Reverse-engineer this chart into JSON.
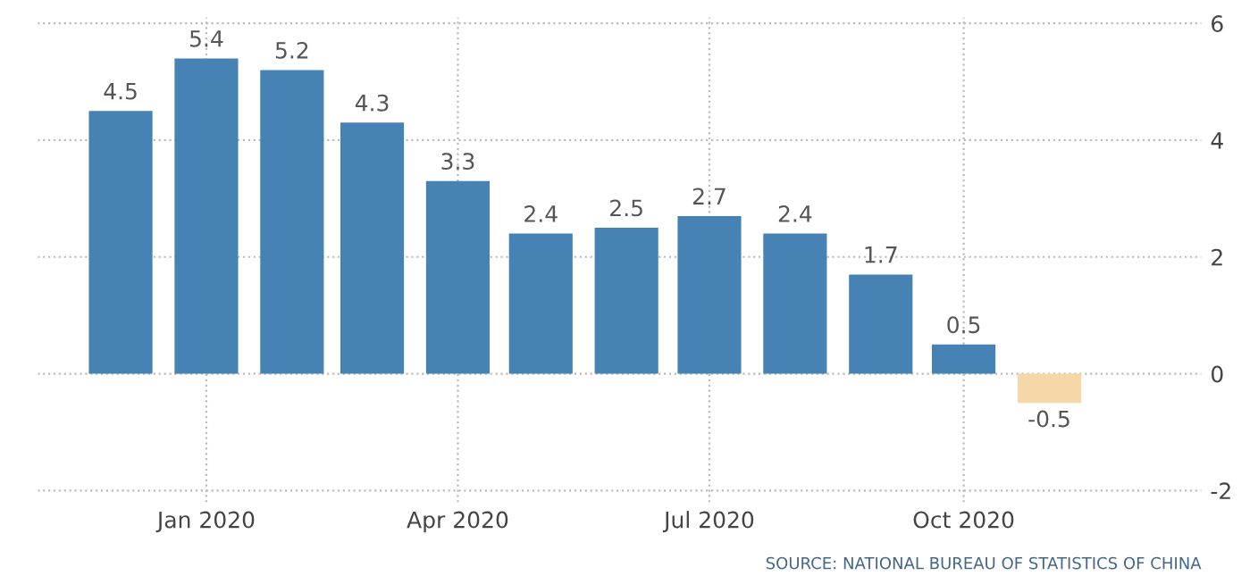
{
  "chart_data": {
    "type": "bar",
    "x": [
      "2019-12",
      "2020-01",
      "2020-02",
      "2020-03",
      "2020-04",
      "2020-05",
      "2020-06",
      "2020-07",
      "2020-08",
      "2020-09",
      "2020-10",
      "2020-11"
    ],
    "values": [
      4.5,
      5.4,
      5.2,
      4.3,
      3.3,
      2.4,
      2.5,
      2.7,
      2.4,
      1.7,
      0.5,
      -0.5
    ],
    "colors": [
      "#4682b4",
      "#4682b4",
      "#4682b4",
      "#4682b4",
      "#4682b4",
      "#4682b4",
      "#4682b4",
      "#4682b4",
      "#4682b4",
      "#4682b4",
      "#4682b4",
      "#f5d7a8"
    ],
    "data_labels": true,
    "xlim": [
      "2019-11-01",
      "2020-12-26"
    ],
    "xticks": [
      {
        "value": "2020-01",
        "label": "Jan 2020"
      },
      {
        "value": "2020-04",
        "label": "Apr 2020"
      },
      {
        "value": "2020-07",
        "label": "Jul 2020"
      },
      {
        "value": "2020-10",
        "label": "Oct 2020"
      }
    ],
    "ylim": [
      -2.2,
      6.1
    ],
    "yticks": [
      -2,
      0,
      2,
      4,
      6
    ],
    "grid": true,
    "annotations": [
      "SOURCE: NATIONAL BUREAU OF STATISTICS OF CHINA"
    ]
  }
}
